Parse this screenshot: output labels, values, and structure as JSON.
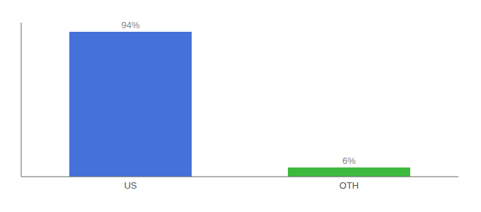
{
  "chart_data": {
    "type": "bar",
    "categories": [
      "US",
      "OTH"
    ],
    "values": [
      94,
      6
    ],
    "value_labels": [
      "94%",
      "6%"
    ],
    "colors": [
      "#4472db",
      "#3dba3d"
    ],
    "ylim": [
      0,
      100
    ],
    "grid": false,
    "data_labels": true,
    "tick_labels": "x"
  }
}
